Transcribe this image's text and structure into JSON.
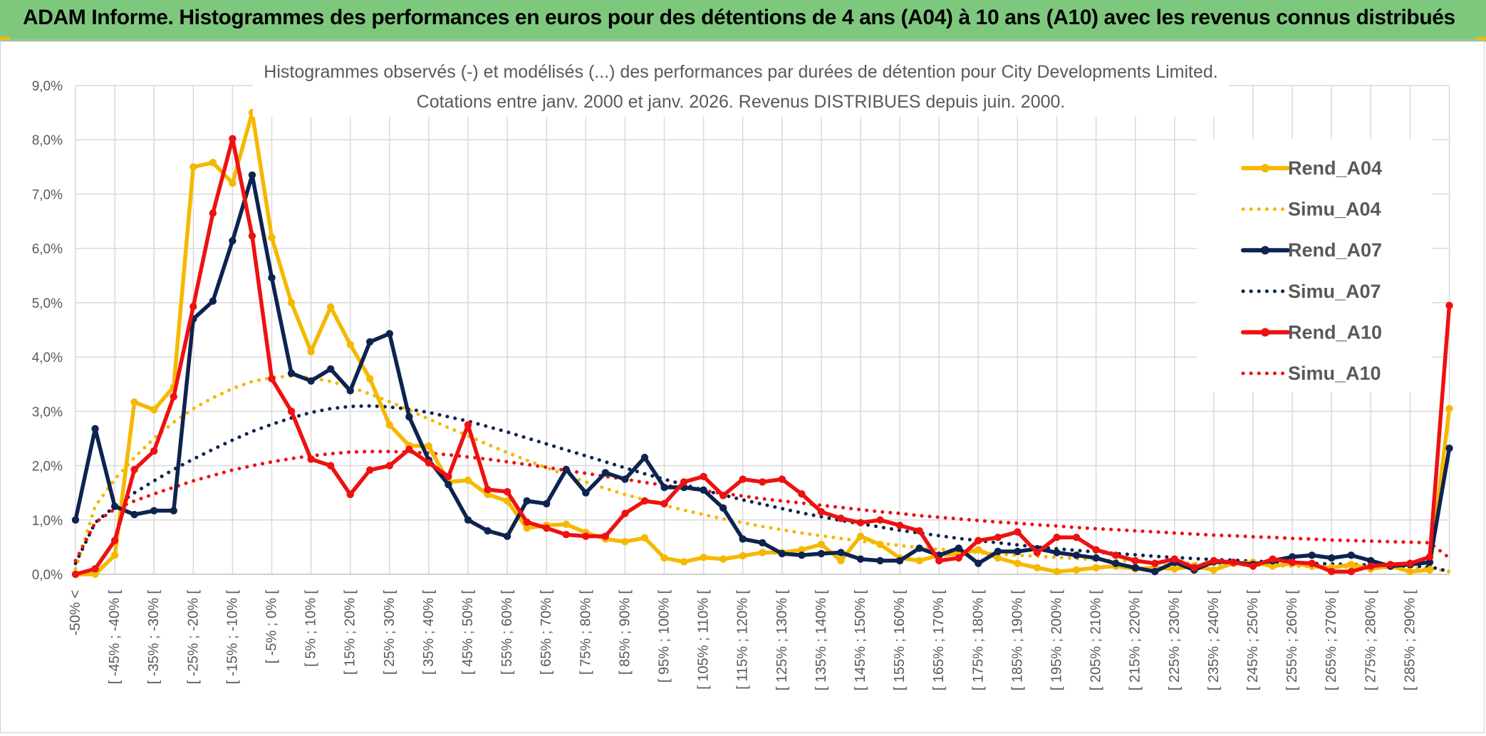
{
  "banner": {
    "title": "ADAM Informe. Histogrammes des performances en euros pour des détentions de 4 ans (A04) à 10 ans (A10) avec les revenus connus distribués"
  },
  "colors": {
    "banner_bg": "#7ec87e",
    "accent_corner": "#f5b800",
    "A04": "#f5b800",
    "A07": "#0d2350",
    "A10": "#ee1111"
  },
  "chart_data": {
    "type": "line",
    "title_line1": "Histogrammes observés (-) et modélisés (...) des performances par durées de détention pour City Developments Limited.",
    "title_line2": "Cotations entre janv. 2000 et janv. 2026. Revenus DISTRIBUES depuis juin. 2000.",
    "ylim": [
      0,
      9
    ],
    "yticks": [
      "0,0%",
      "1,0%",
      "2,0%",
      "3,0%",
      "4,0%",
      "5,0%",
      "6,0%",
      "7,0%",
      "8,0%",
      "9,0%"
    ],
    "grid": true,
    "legend_position": "right",
    "categories": [
      "-50% <",
      "[ -50% ; -45% [",
      "[ -45% ; -40% [",
      "[ -40% ; -35% [",
      "[ -35% ; -30% [",
      "[ -30% ; -25% [",
      "[ -25% ; -20% [",
      "[ -20% ; -15% [",
      "[ -15% ; -10% [",
      "[ -10% ; -5% [",
      "[ -5% ; 0% [",
      "[ 0% ; 5% [",
      "[ 5% ; 10% [",
      "[ 10% ; 15% [",
      "[ 15% ; 20% [",
      "[ 20% ; 25% [",
      "[ 25% ; 30% [",
      "[ 30% ; 35% [",
      "[ 35% ; 40% [",
      "[ 40% ; 45% [",
      "[ 45% ; 50% [",
      "[ 50% ; 55% [",
      "[ 55% ; 60% [",
      "[ 60% ; 65% [",
      "[ 65% ; 70% [",
      "[ 70% ; 75% [",
      "[ 75% ; 80% [",
      "[ 80% ; 85% [",
      "[ 85% ; 90% [",
      "[ 90% ; 95% [",
      "[ 95% ; 100% [",
      "[ 100% ; 105% [",
      "[ 105% ; 110% [",
      "[ 110% ; 115% [",
      "[ 115% ; 120% [",
      "[ 120% ; 125% [",
      "[ 125% ; 130% [",
      "[ 130% ; 135% [",
      "[ 135% ; 140% [",
      "[ 140% ; 145% [",
      "[ 145% ; 150% [",
      "[ 150% ; 155% [",
      "[ 155% ; 160% [",
      "[ 160% ; 165% [",
      "[ 165% ; 170% [",
      "[ 170% ; 175% [",
      "[ 175% ; 180% [",
      "[ 180% ; 185% [",
      "[ 185% ; 190% [",
      "[ 190% ; 195% [",
      "[ 195% ; 200% [",
      "[ 200% ; 205% [",
      "[ 205% ; 210% [",
      "[ 210% ; 215% [",
      "[ 215% ; 220% [",
      "[ 220% ; 225% [",
      "[ 225% ; 230% [",
      "[ 230% ; 235% [",
      "[ 235% ; 240% [",
      "[ 240% ; 245% [",
      "[ 245% ; 250% [",
      "[ 250% ; 255% [",
      "[ 255% ; 260% [",
      "[ 260% ; 265% [",
      "[ 265% ; 270% [",
      "[ 270% ; 275% [",
      "[ 275% ; 280% [",
      "[ 280% ; 285% [",
      "[ 285% ; 290% [",
      "[ 290% ; 295% [",
      "[ 295% ; 300% ["
    ],
    "visible_xticks": [
      {
        "i": 0,
        "label": "-50% <"
      },
      {
        "i": 2,
        "label": "[ -45% ; -40% ["
      },
      {
        "i": 4,
        "label": "[ -35% ; -30% ["
      },
      {
        "i": 6,
        "label": "[ -25% ; -20% ["
      },
      {
        "i": 8,
        "label": "[ -15% ; -10% ["
      },
      {
        "i": 10,
        "label": "[ -5% ; 0% ["
      },
      {
        "i": 12,
        "label": "[ 5% ; 10% ["
      },
      {
        "i": 14,
        "label": "[ 15% ; 20% ["
      },
      {
        "i": 16,
        "label": "[ 25% ; 30% ["
      },
      {
        "i": 18,
        "label": "[ 35% ; 40% ["
      },
      {
        "i": 20,
        "label": "[ 45% ; 50% ["
      },
      {
        "i": 22,
        "label": "[ 55% ; 60% ["
      },
      {
        "i": 24,
        "label": "[ 65% ; 70% ["
      },
      {
        "i": 26,
        "label": "[ 75% ; 80% ["
      },
      {
        "i": 28,
        "label": "[ 85% ; 90% ["
      },
      {
        "i": 30,
        "label": "[ 95% ; 100% ["
      },
      {
        "i": 32,
        "label": "[ 105% ; 110% ["
      },
      {
        "i": 34,
        "label": "[ 115% ; 120% ["
      },
      {
        "i": 36,
        "label": "[ 125% ; 130% ["
      },
      {
        "i": 38,
        "label": "[ 135% ; 140% ["
      },
      {
        "i": 40,
        "label": "[ 145% ; 150% ["
      },
      {
        "i": 42,
        "label": "[ 155% ; 160% ["
      },
      {
        "i": 44,
        "label": "[ 165% ; 170% ["
      },
      {
        "i": 46,
        "label": "[ 175% ; 180% ["
      },
      {
        "i": 48,
        "label": "[ 185% ; 190% ["
      },
      {
        "i": 50,
        "label": "[ 195% ; 200% ["
      },
      {
        "i": 52,
        "label": "[ 205% ; 210% ["
      },
      {
        "i": 54,
        "label": "[ 215% ; 220% ["
      },
      {
        "i": 56,
        "label": "[ 225% ; 230% ["
      },
      {
        "i": 58,
        "label": "[ 235% ; 240% ["
      },
      {
        "i": 60,
        "label": "[ 245% ; 250% ["
      },
      {
        "i": 62,
        "label": "[ 255% ; 260% ["
      },
      {
        "i": 64,
        "label": "[ 265% ; 270% ["
      },
      {
        "i": 66,
        "label": "[ 275% ; 280% ["
      },
      {
        "i": 68,
        "label": "[ 285% ; 290% ["
      }
    ],
    "series": [
      {
        "name": "Rend_A04",
        "style": "solid",
        "color": "#f5b800",
        "values": [
          0.0,
          0.0,
          0.35,
          3.17,
          3.03,
          3.45,
          7.5,
          7.58,
          7.2,
          8.5,
          6.2,
          5.0,
          4.1,
          4.92,
          4.23,
          3.6,
          2.75,
          2.37,
          2.36,
          1.7,
          1.73,
          1.47,
          1.35,
          0.85,
          0.9,
          0.92,
          0.77,
          0.65,
          0.6,
          0.67,
          0.3,
          0.23,
          0.31,
          0.28,
          0.34,
          0.4,
          0.4,
          0.45,
          0.55,
          0.25,
          0.7,
          0.55,
          0.3,
          0.25,
          0.35,
          0.38,
          0.45,
          0.3,
          0.2,
          0.12,
          0.05,
          0.08,
          0.12,
          0.15,
          0.1,
          0.12,
          0.1,
          0.15,
          0.08,
          0.2,
          0.22,
          0.15,
          0.2,
          0.15,
          0.12,
          0.18,
          0.1,
          0.15,
          0.05,
          0.08,
          3.05
        ]
      },
      {
        "name": "Simu_A04",
        "style": "dotted",
        "color": "#f5b800",
        "values": [
          0.1,
          1.25,
          1.75,
          2.15,
          2.5,
          2.8,
          3.05,
          3.25,
          3.42,
          3.55,
          3.62,
          3.65,
          3.62,
          3.55,
          3.45,
          3.32,
          3.18,
          3.02,
          2.86,
          2.7,
          2.55,
          2.39,
          2.24,
          2.1,
          1.96,
          1.83,
          1.7,
          1.58,
          1.47,
          1.37,
          1.27,
          1.18,
          1.1,
          1.02,
          0.95,
          0.88,
          0.82,
          0.76,
          0.71,
          0.66,
          0.61,
          0.57,
          0.53,
          0.49,
          0.46,
          0.43,
          0.4,
          0.37,
          0.35,
          0.33,
          0.31,
          0.29,
          0.27,
          0.25,
          0.24,
          0.22,
          0.21,
          0.2,
          0.19,
          0.18,
          0.17,
          0.16,
          0.15,
          0.14,
          0.14,
          0.13,
          0.12,
          0.12,
          0.11,
          0.11,
          0.05
        ]
      },
      {
        "name": "Rend_A07",
        "style": "solid",
        "color": "#0d2350",
        "values": [
          1.0,
          2.68,
          1.25,
          1.1,
          1.17,
          1.17,
          4.7,
          5.03,
          6.14,
          7.35,
          5.46,
          3.7,
          3.56,
          3.78,
          3.38,
          4.28,
          4.43,
          2.9,
          2.1,
          1.65,
          1.0,
          0.8,
          0.7,
          1.35,
          1.3,
          1.93,
          1.5,
          1.87,
          1.75,
          2.15,
          1.6,
          1.6,
          1.55,
          1.22,
          0.65,
          0.58,
          0.38,
          0.35,
          0.38,
          0.4,
          0.28,
          0.25,
          0.25,
          0.48,
          0.35,
          0.48,
          0.2,
          0.42,
          0.42,
          0.47,
          0.4,
          0.35,
          0.3,
          0.2,
          0.12,
          0.05,
          0.22,
          0.08,
          0.23,
          0.22,
          0.18,
          0.25,
          0.32,
          0.35,
          0.3,
          0.35,
          0.25,
          0.15,
          0.18,
          0.22,
          2.32
        ]
      },
      {
        "name": "Simu_A07",
        "style": "dotted",
        "color": "#0d2350",
        "values": [
          0.2,
          0.95,
          1.25,
          1.5,
          1.72,
          1.93,
          2.12,
          2.3,
          2.47,
          2.63,
          2.76,
          2.88,
          2.98,
          3.05,
          3.09,
          3.1,
          3.08,
          3.04,
          2.98,
          2.9,
          2.82,
          2.72,
          2.62,
          2.51,
          2.4,
          2.29,
          2.18,
          2.07,
          1.96,
          1.85,
          1.75,
          1.65,
          1.55,
          1.46,
          1.37,
          1.29,
          1.21,
          1.13,
          1.06,
          0.99,
          0.93,
          0.87,
          0.81,
          0.76,
          0.71,
          0.66,
          0.62,
          0.58,
          0.54,
          0.5,
          0.47,
          0.44,
          0.41,
          0.38,
          0.36,
          0.33,
          0.31,
          0.29,
          0.27,
          0.26,
          0.24,
          0.23,
          0.21,
          0.2,
          0.19,
          0.18,
          0.17,
          0.16,
          0.15,
          0.14,
          0.05
        ]
      },
      {
        "name": "Rend_A10",
        "style": "solid",
        "color": "#ee1111",
        "values": [
          0.0,
          0.1,
          0.62,
          1.93,
          2.27,
          3.27,
          4.93,
          6.65,
          8.02,
          6.23,
          3.6,
          3.0,
          2.12,
          2.0,
          1.47,
          1.92,
          2.0,
          2.3,
          2.05,
          1.8,
          2.75,
          1.56,
          1.52,
          0.96,
          0.85,
          0.73,
          0.7,
          0.7,
          1.12,
          1.35,
          1.3,
          1.7,
          1.8,
          1.45,
          1.75,
          1.7,
          1.75,
          1.48,
          1.15,
          1.03,
          0.95,
          1.0,
          0.9,
          0.8,
          0.25,
          0.3,
          0.62,
          0.68,
          0.78,
          0.4,
          0.68,
          0.68,
          0.45,
          0.35,
          0.25,
          0.2,
          0.28,
          0.12,
          0.25,
          0.22,
          0.15,
          0.28,
          0.22,
          0.2,
          0.05,
          0.05,
          0.15,
          0.18,
          0.2,
          0.32,
          4.95
        ]
      },
      {
        "name": "Simu_A10",
        "style": "dotted",
        "color": "#ee1111",
        "values": [
          0.25,
          0.95,
          1.2,
          1.35,
          1.48,
          1.6,
          1.72,
          1.82,
          1.92,
          2.0,
          2.07,
          2.13,
          2.18,
          2.22,
          2.25,
          2.26,
          2.26,
          2.25,
          2.23,
          2.2,
          2.16,
          2.12,
          2.07,
          2.02,
          1.97,
          1.91,
          1.86,
          1.8,
          1.75,
          1.69,
          1.64,
          1.59,
          1.54,
          1.49,
          1.44,
          1.39,
          1.35,
          1.31,
          1.27,
          1.23,
          1.19,
          1.15,
          1.12,
          1.08,
          1.05,
          1.02,
          0.99,
          0.96,
          0.94,
          0.91,
          0.89,
          0.86,
          0.84,
          0.82,
          0.8,
          0.78,
          0.76,
          0.74,
          0.72,
          0.71,
          0.69,
          0.68,
          0.66,
          0.65,
          0.63,
          0.62,
          0.61,
          0.6,
          0.59,
          0.58,
          0.3
        ]
      }
    ]
  }
}
